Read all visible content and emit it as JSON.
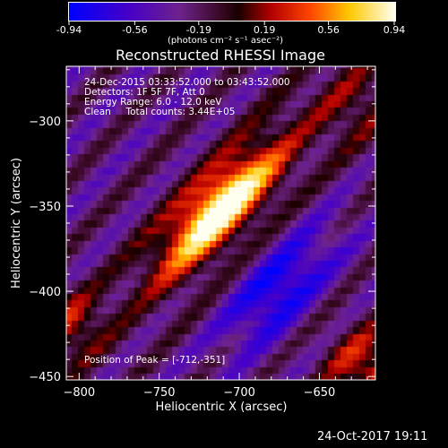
{
  "colorbar": {
    "tick_labels": [
      "-0.94",
      "-0.56",
      "-0.19",
      "0.19",
      "0.56",
      "0.94"
    ],
    "unit_label": "(photons cm⁻² s⁻¹ asec⁻²)"
  },
  "plot": {
    "title": "Reconstructed RHESSI Image",
    "info_lines": [
      "24-Dec-2015 03:33:52.000 to 03:43:52.000",
      "Detectors: 1F 5F 7F, Att 0",
      "Energy Range: 6.0 - 12.0 keV",
      "Clean     Total counts: 3.44E+05"
    ],
    "peak_label": "Position of Peak = [-712,-351]"
  },
  "footer": {
    "date": "24-Oct-2017 19:11"
  },
  "chart_data": {
    "type": "heatmap",
    "title": "Reconstructed RHESSI Image",
    "xlabel": "Heliocentric X (arcsec)",
    "ylabel": "Heliocentric Y (arcsec)",
    "xlim": [
      -808,
      -615
    ],
    "ylim": [
      -452,
      -268
    ],
    "x_ticks": [
      -800,
      -750,
      -700,
      -650
    ],
    "y_ticks": [
      -300,
      -350,
      -400,
      -450
    ],
    "color_range": [
      -0.94,
      0.94
    ],
    "colorbar_ticks": [
      -0.94,
      -0.56,
      -0.19,
      0.19,
      0.56,
      0.94
    ],
    "peak": {
      "x": -712,
      "y": -351,
      "value": 0.94
    },
    "negative_lobe": {
      "x": -675,
      "y": -398,
      "value": -0.6
    },
    "grid_step": 3.9
  }
}
